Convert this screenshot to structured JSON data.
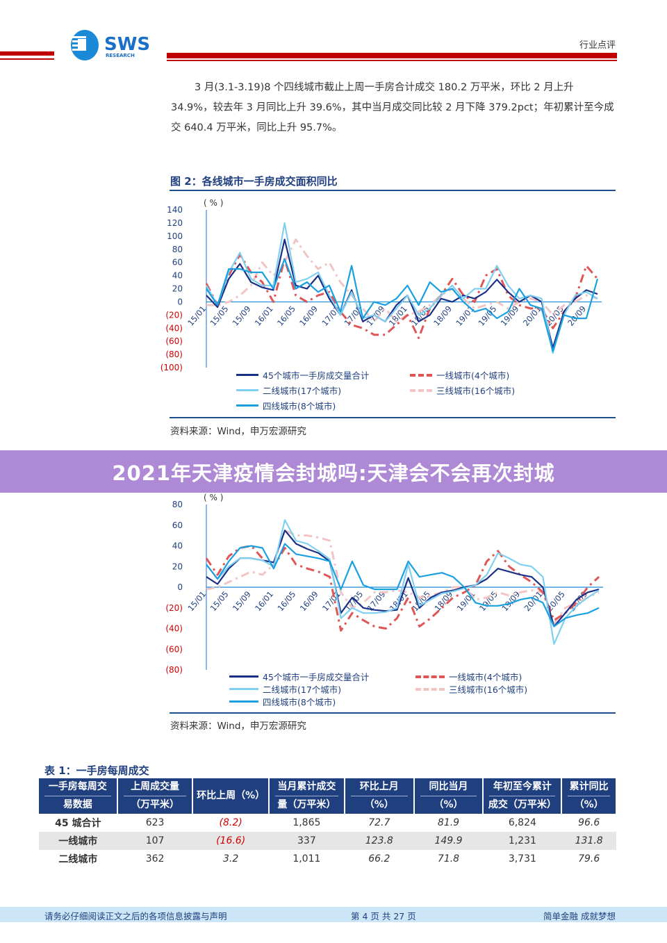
{
  "header": {
    "logo_text": "SWS",
    "logo_sub": "RESEARCH",
    "tag": "行业点评"
  },
  "paragraph": "3 月(3.1-3.19)8 个四线城市截止上周一手房合计成交 180.2 万平米，环比 2 月上升 34.9%，较去年 3 月同比上升 39.6%，其中当月成交同比较 2 月下降 379.2pct；年初累计至今成交 640.4 万平米，同比上升 95.7%。",
  "figure2": {
    "title": "图 2：各线城市一手房成交面积同比",
    "source": "资料来源：Wind，申万宏源研究"
  },
  "figure3": {
    "source": "资料来源：Wind，申万宏源研究"
  },
  "banner": "2021年天津疫情会封城吗:天津会不会再次封城",
  "colors": {
    "navy": "#1a2f86",
    "red": "#e05555",
    "pink": "#f2c4c4",
    "lightblue": "#7fd0f0",
    "midblue": "#1aa0e0",
    "header_red": "#c00000",
    "table_header": "#1f3f7f"
  },
  "chart_data": [
    {
      "type": "line",
      "unit_label": "( % )",
      "ylim": [
        -100,
        140
      ],
      "yticks": [
        "140",
        "120",
        "100",
        "80",
        "60",
        "40",
        "20",
        "0",
        "(20)",
        "(40)",
        "(60)",
        "(80)",
        "(100)"
      ],
      "xticks": [
        "15/01",
        "15/05",
        "15/09",
        "16/01",
        "16/05",
        "16/09",
        "17/01",
        "17/05",
        "17/09",
        "18/01",
        "18/05",
        "18/09",
        "19/01",
        "19/05",
        "19/09",
        "20/01",
        "20/05",
        "20/09"
      ],
      "x": [
        "15/01",
        "15/03",
        "15/05",
        "15/07",
        "15/09",
        "15/11",
        "16/01",
        "16/03",
        "16/05",
        "16/07",
        "16/09",
        "16/11",
        "17/01",
        "17/03",
        "17/05",
        "17/07",
        "17/09",
        "17/11",
        "18/01",
        "18/03",
        "18/05",
        "18/07",
        "18/09",
        "18/11",
        "19/01",
        "19/03",
        "19/05",
        "19/07",
        "19/09",
        "19/11",
        "20/01",
        "20/03",
        "20/05",
        "20/07",
        "20/09",
        "20/11"
      ],
      "series": [
        {
          "name": "45个城市一手房成交量合计",
          "values": [
            10,
            -8,
            35,
            58,
            30,
            22,
            18,
            95,
            25,
            20,
            40,
            5,
            -20,
            18,
            -30,
            -20,
            -30,
            -5,
            10,
            -30,
            -20,
            5,
            0,
            10,
            5,
            15,
            34,
            15,
            0,
            10,
            0,
            -70,
            -15,
            5,
            18,
            12
          ]
        },
        {
          "name": "一线城市(4个城市)",
          "values": [
            28,
            -5,
            40,
            72,
            45,
            30,
            0,
            65,
            10,
            0,
            10,
            15,
            -15,
            -35,
            -40,
            -50,
            -50,
            -35,
            -20,
            -55,
            -10,
            10,
            35,
            10,
            0,
            40,
            50,
            10,
            -5,
            -10,
            -10,
            -40,
            -15,
            5,
            55,
            35
          ]
        },
        {
          "name": "二线城市(17个城市)",
          "values": [
            -5,
            -5,
            0,
            10,
            25,
            60,
            40,
            60,
            95,
            70,
            50,
            60,
            30,
            10,
            -10,
            -30,
            -10,
            -30,
            -20,
            -15,
            -5,
            10,
            20,
            5,
            -10,
            -5,
            0,
            -10,
            0,
            5,
            0,
            -20,
            -5,
            0,
            10,
            5
          ]
        },
        {
          "name": "三线城市(16个城市)",
          "values": [
            25,
            -5,
            45,
            75,
            35,
            25,
            25,
            120,
            30,
            35,
            45,
            10,
            -20,
            15,
            -25,
            -20,
            -30,
            -10,
            10,
            -20,
            -10,
            10,
            25,
            5,
            20,
            20,
            55,
            25,
            5,
            10,
            5,
            -78,
            -20,
            10,
            15,
            5
          ]
        },
        {
          "name": "四线城市(8个城市)",
          "values": [
            20,
            -5,
            50,
            50,
            45,
            45,
            20,
            65,
            20,
            30,
            15,
            25,
            -15,
            55,
            -25,
            0,
            -5,
            5,
            25,
            -5,
            30,
            15,
            20,
            0,
            -15,
            -10,
            -25,
            -15,
            20,
            -5,
            -10,
            -75,
            -20,
            -25,
            -25,
            35
          ]
        }
      ]
    },
    {
      "type": "line",
      "unit_label": "( % )",
      "ylim": [
        -80,
        80
      ],
      "yticks": [
        "80",
        "60",
        "40",
        "20",
        "0",
        "(20)",
        "(40)",
        "(60)",
        "(80)"
      ],
      "xticks": [
        "15/01",
        "15/05",
        "15/09",
        "16/01",
        "16/05",
        "16/09",
        "17/01",
        "17/05",
        "17/09",
        "18/01",
        "18/05",
        "18/09",
        "19/01",
        "19/05",
        "19/09",
        "20/01",
        "20/05",
        "20/09"
      ],
      "x": [
        "15/01",
        "15/03",
        "15/05",
        "15/07",
        "15/09",
        "15/11",
        "16/01",
        "16/03",
        "16/05",
        "16/07",
        "16/09",
        "16/11",
        "17/01",
        "17/03",
        "17/05",
        "17/07",
        "17/09",
        "17/11",
        "18/01",
        "18/03",
        "18/05",
        "18/07",
        "18/09",
        "18/11",
        "19/01",
        "19/03",
        "19/05",
        "19/07",
        "19/09",
        "19/11",
        "20/01",
        "20/03",
        "20/05",
        "20/07",
        "20/09",
        "20/11"
      ],
      "series": [
        {
          "name": "45个城市一手房成交量合计",
          "values": [
            10,
            3,
            18,
            28,
            28,
            26,
            24,
            55,
            42,
            37,
            33,
            25,
            -25,
            -10,
            -20,
            -22,
            -23,
            -22,
            9,
            -20,
            -10,
            -5,
            -3,
            0,
            2,
            8,
            18,
            15,
            12,
            10,
            0,
            -38,
            -25,
            -12,
            -5,
            -2
          ]
        },
        {
          "name": "一线城市(4个城市)",
          "values": [
            28,
            12,
            30,
            38,
            40,
            28,
            20,
            38,
            22,
            18,
            15,
            10,
            -42,
            -25,
            -32,
            -38,
            -40,
            -30,
            -10,
            -38,
            -30,
            -20,
            -10,
            -5,
            2,
            25,
            35,
            20,
            12,
            5,
            -5,
            -32,
            -25,
            -15,
            0,
            10
          ]
        },
        {
          "name": "二线城市(17个城市)",
          "values": [
            -2,
            0,
            5,
            10,
            15,
            12,
            22,
            55,
            50,
            50,
            48,
            45,
            -5,
            -20,
            -15,
            -5,
            -5,
            -3,
            -5,
            -10,
            -8,
            -5,
            0,
            0,
            -12,
            -10,
            -5,
            -8,
            -5,
            -3,
            -5,
            -35,
            -20,
            -15,
            -10,
            -5
          ]
        },
        {
          "name": "三线城市(16个城市)",
          "values": [
            22,
            8,
            20,
            28,
            28,
            26,
            20,
            65,
            45,
            42,
            35,
            27,
            -30,
            -20,
            -25,
            -25,
            -24,
            -20,
            22,
            -18,
            -12,
            -6,
            -4,
            -1,
            2,
            12,
            33,
            28,
            22,
            20,
            10,
            -55,
            -30,
            -18,
            -10,
            -3
          ]
        },
        {
          "name": "四线城市(8个城市)",
          "values": [
            22,
            8,
            25,
            38,
            40,
            38,
            18,
            42,
            32,
            30,
            28,
            25,
            -2,
            25,
            2,
            -2,
            -2,
            -2,
            25,
            10,
            12,
            14,
            10,
            0,
            -15,
            -18,
            -18,
            -16,
            -12,
            -10,
            -15,
            -38,
            -30,
            -27,
            -25,
            -20
          ]
        }
      ]
    }
  ],
  "table": {
    "title": "表 1：一手房每周成交",
    "headers": [
      [
        "一手房每周交",
        "易数据"
      ],
      [
        "上周成交量",
        "（万平米）"
      ],
      [
        "环比上周（%）"
      ],
      [
        "当月累计成交",
        "量（万平米）"
      ],
      [
        "环比上月",
        "（%）"
      ],
      [
        "同比当月",
        "（%）"
      ],
      [
        "年初至今累计",
        "成交（万平米）"
      ],
      [
        "累计同比",
        "（%）"
      ]
    ],
    "rows": [
      [
        "45 城合计",
        "623",
        "(8.2)",
        "1,865",
        "72.7",
        "81.9",
        "6,824",
        "96.6"
      ],
      [
        "一线城市",
        "107",
        "(16.6)",
        "337",
        "123.8",
        "149.9",
        "1,231",
        "131.8"
      ],
      [
        "二线城市",
        "362",
        "3.2",
        "1,011",
        "66.2",
        "71.8",
        "3,731",
        "79.6"
      ]
    ]
  },
  "footer": {
    "left": "请务必仔细阅读正文之后的各项信息披露与声明",
    "center": "第 4 页 共 27 页",
    "right": "简单金融 成就梦想"
  }
}
